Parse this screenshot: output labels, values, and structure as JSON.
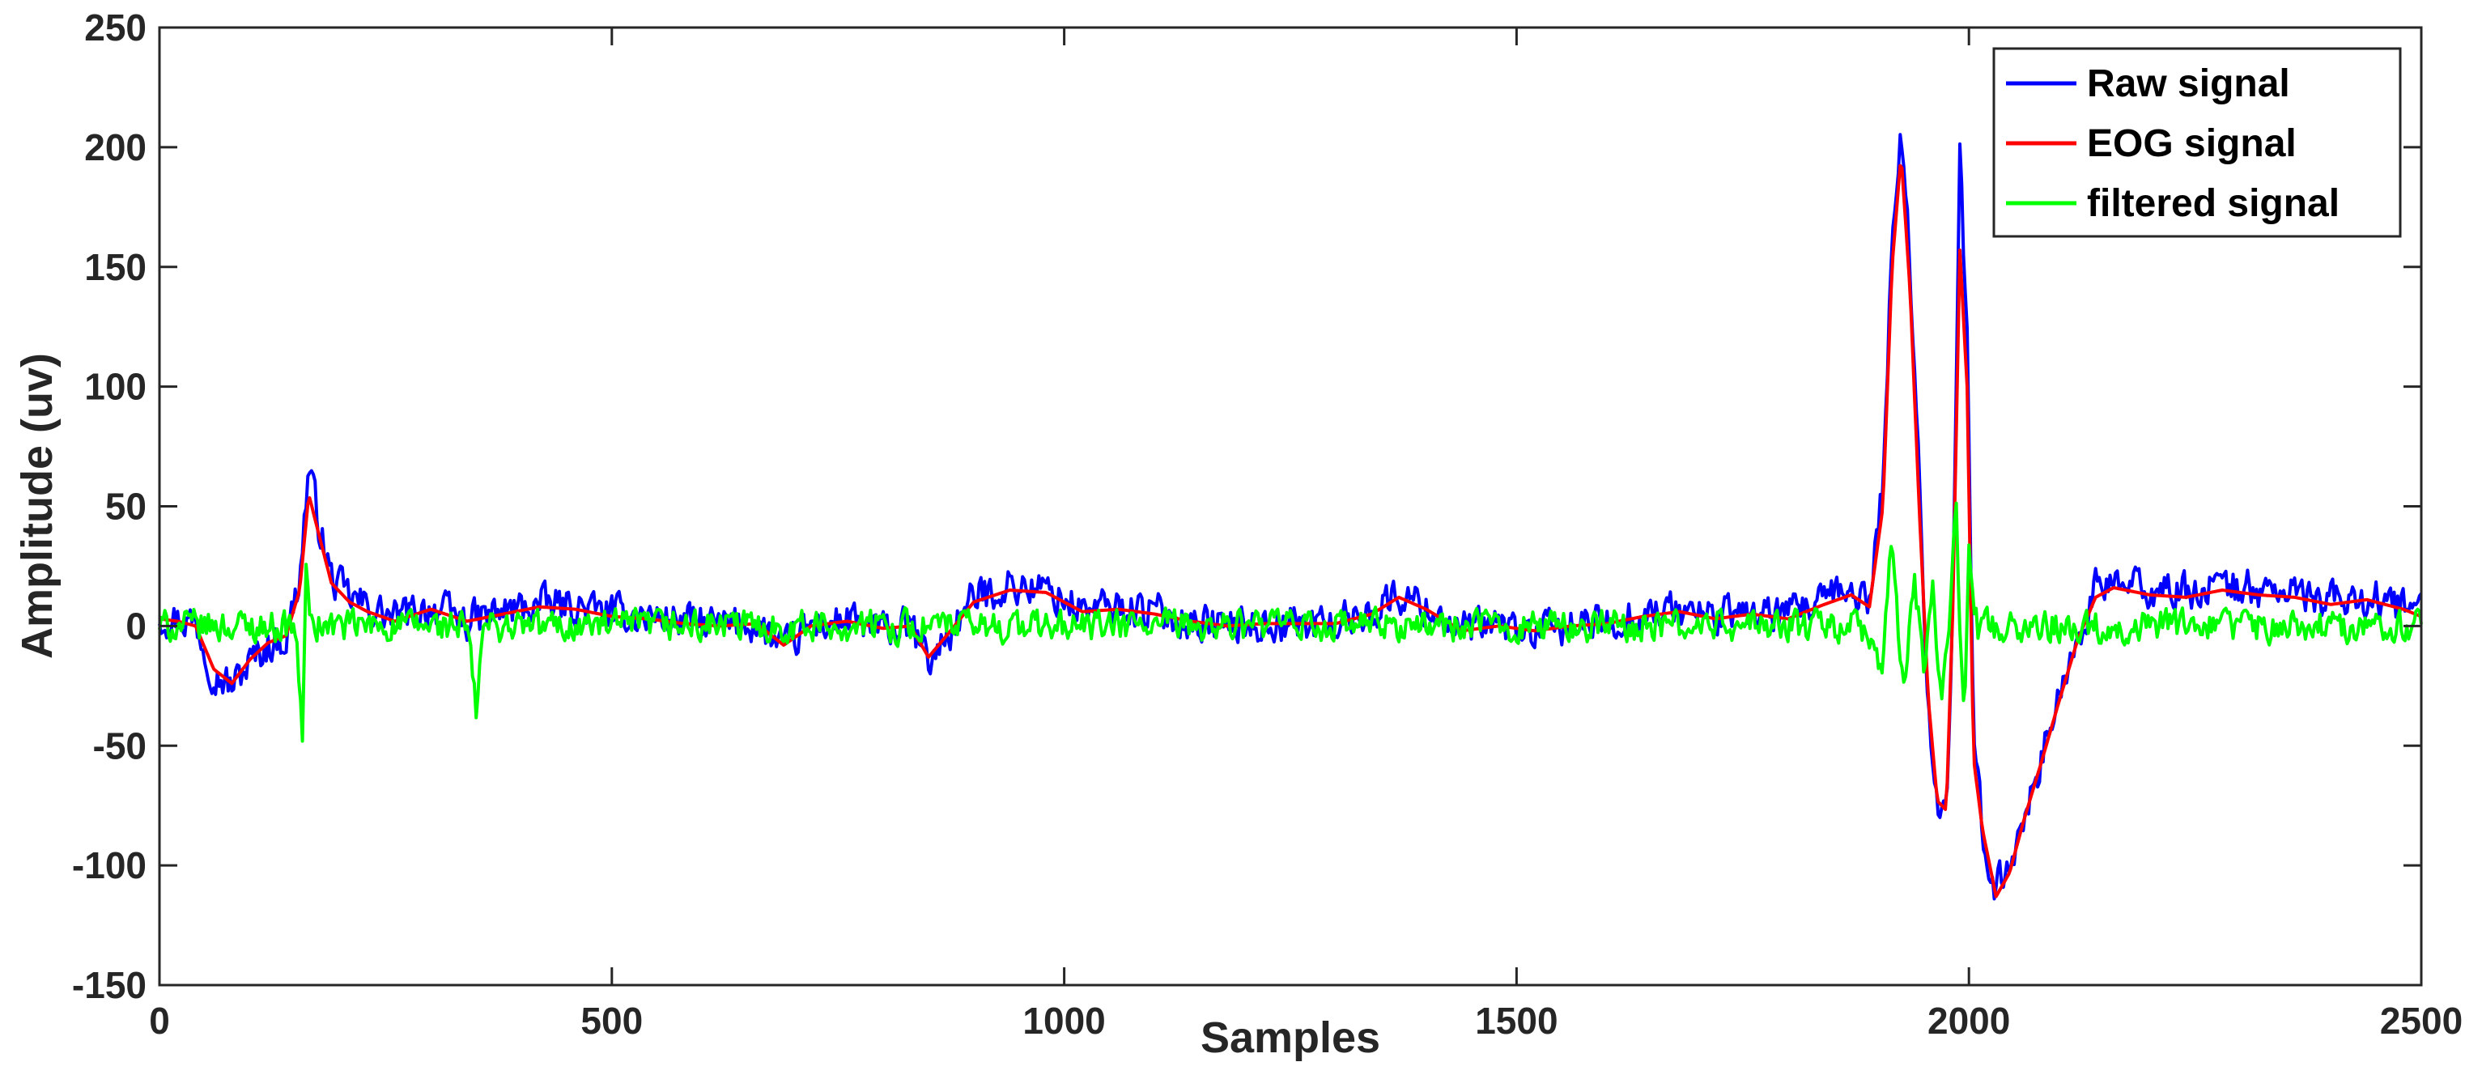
{
  "chart_data": {
    "type": "line",
    "title": "",
    "xlabel": "Samples",
    "ylabel": "Amplitude (uv)",
    "xlim": [
      0,
      2500
    ],
    "ylim": [
      -150,
      250
    ],
    "xticks": [
      0,
      500,
      1000,
      1500,
      2000,
      2500
    ],
    "yticks": [
      -150,
      -100,
      -50,
      0,
      50,
      100,
      150,
      200,
      250
    ],
    "grid": false,
    "legend_position": "top-right",
    "series": [
      {
        "name": "Raw signal",
        "color": "#0000ff",
        "noise": 7,
        "x": [
          0,
          20,
          40,
          60,
          80,
          100,
          120,
          140,
          155,
          165,
          175,
          190,
          210,
          230,
          260,
          300,
          340,
          380,
          420,
          460,
          500,
          540,
          580,
          620,
          660,
          690,
          720,
          760,
          800,
          830,
          850,
          870,
          900,
          940,
          980,
          1020,
          1060,
          1100,
          1140,
          1180,
          1220,
          1260,
          1300,
          1340,
          1370,
          1400,
          1440,
          1480,
          1520,
          1560,
          1600,
          1640,
          1680,
          1720,
          1760,
          1800,
          1840,
          1870,
          1890,
          1905,
          1915,
          1925,
          1935,
          1945,
          1955,
          1965,
          1975,
          1982,
          1990,
          1998,
          2005,
          2015,
          2030,
          2045,
          2060,
          2080,
          2100,
          2120,
          2140,
          2160,
          2200,
          2240,
          2280,
          2320,
          2360,
          2400,
          2440,
          2480,
          2500
        ],
        "y": [
          4,
          3,
          2,
          -20,
          -25,
          -15,
          -8,
          -5,
          20,
          67,
          45,
          20,
          12,
          8,
          3,
          8,
          2,
          6,
          9,
          8,
          5,
          4,
          2,
          0,
          1,
          -10,
          0,
          2,
          -2,
          0,
          -15,
          -5,
          12,
          17,
          15,
          7,
          8,
          6,
          2,
          0,
          1,
          1,
          1,
          6,
          13,
          8,
          -2,
          0,
          -3,
          0,
          1,
          5,
          7,
          4,
          6,
          4,
          10,
          15,
          10,
          60,
          160,
          210,
          150,
          60,
          -30,
          -75,
          -78,
          10,
          195,
          120,
          -50,
          -85,
          -110,
          -100,
          -80,
          -55,
          -30,
          -5,
          15,
          18,
          15,
          14,
          17,
          15,
          14,
          10,
          12,
          8,
          5
        ]
      },
      {
        "name": "EOG signal",
        "color": "#ff0000",
        "noise": 0,
        "x": [
          0,
          20,
          40,
          60,
          80,
          100,
          120,
          140,
          155,
          165,
          175,
          190,
          210,
          230,
          260,
          300,
          340,
          380,
          420,
          460,
          500,
          540,
          580,
          620,
          660,
          690,
          720,
          760,
          800,
          830,
          850,
          870,
          900,
          940,
          980,
          1020,
          1060,
          1100,
          1140,
          1180,
          1220,
          1260,
          1300,
          1340,
          1370,
          1400,
          1440,
          1480,
          1520,
          1560,
          1600,
          1640,
          1680,
          1720,
          1760,
          1800,
          1840,
          1870,
          1890,
          1905,
          1915,
          1925,
          1935,
          1945,
          1955,
          1965,
          1975,
          1982,
          1990,
          1998,
          2005,
          2015,
          2030,
          2045,
          2060,
          2080,
          2100,
          2120,
          2140,
          2160,
          2200,
          2240,
          2280,
          2320,
          2360,
          2400,
          2440,
          2480,
          2500
        ],
        "y": [
          3,
          2,
          0,
          -18,
          -24,
          -14,
          -7,
          -4,
          15,
          55,
          40,
          18,
          10,
          6,
          2,
          7,
          2,
          5,
          8,
          7,
          4,
          3,
          1,
          0,
          1,
          -8,
          0,
          2,
          -1,
          0,
          -13,
          -4,
          10,
          15,
          14,
          6,
          7,
          5,
          2,
          0,
          1,
          1,
          1,
          5,
          12,
          7,
          -2,
          0,
          -2,
          0,
          1,
          4,
          6,
          3,
          5,
          3,
          9,
          13,
          8,
          50,
          150,
          197,
          140,
          50,
          -30,
          -73,
          -77,
          5,
          157,
          100,
          -55,
          -85,
          -113,
          -103,
          -82,
          -57,
          -31,
          -6,
          12,
          16,
          13,
          12,
          15,
          13,
          12,
          9,
          11,
          7,
          4
        ]
      },
      {
        "name": "filtered signal",
        "color": "#00ff00",
        "noise": 6,
        "x": [
          0,
          150,
          158,
          162,
          168,
          200,
          340,
          350,
          358,
          400,
          1880,
          1905,
          1915,
          1922,
          1928,
          1940,
          1950,
          1960,
          1970,
          1980,
          1985,
          1990,
          1995,
          2000,
          2010,
          2025,
          2500
        ],
        "y": [
          0,
          0,
          -45,
          22,
          0,
          0,
          0,
          -36,
          0,
          0,
          0,
          -20,
          42,
          0,
          -30,
          20,
          -20,
          15,
          -35,
          15,
          60,
          0,
          -35,
          30,
          0,
          0,
          0
        ]
      }
    ]
  }
}
